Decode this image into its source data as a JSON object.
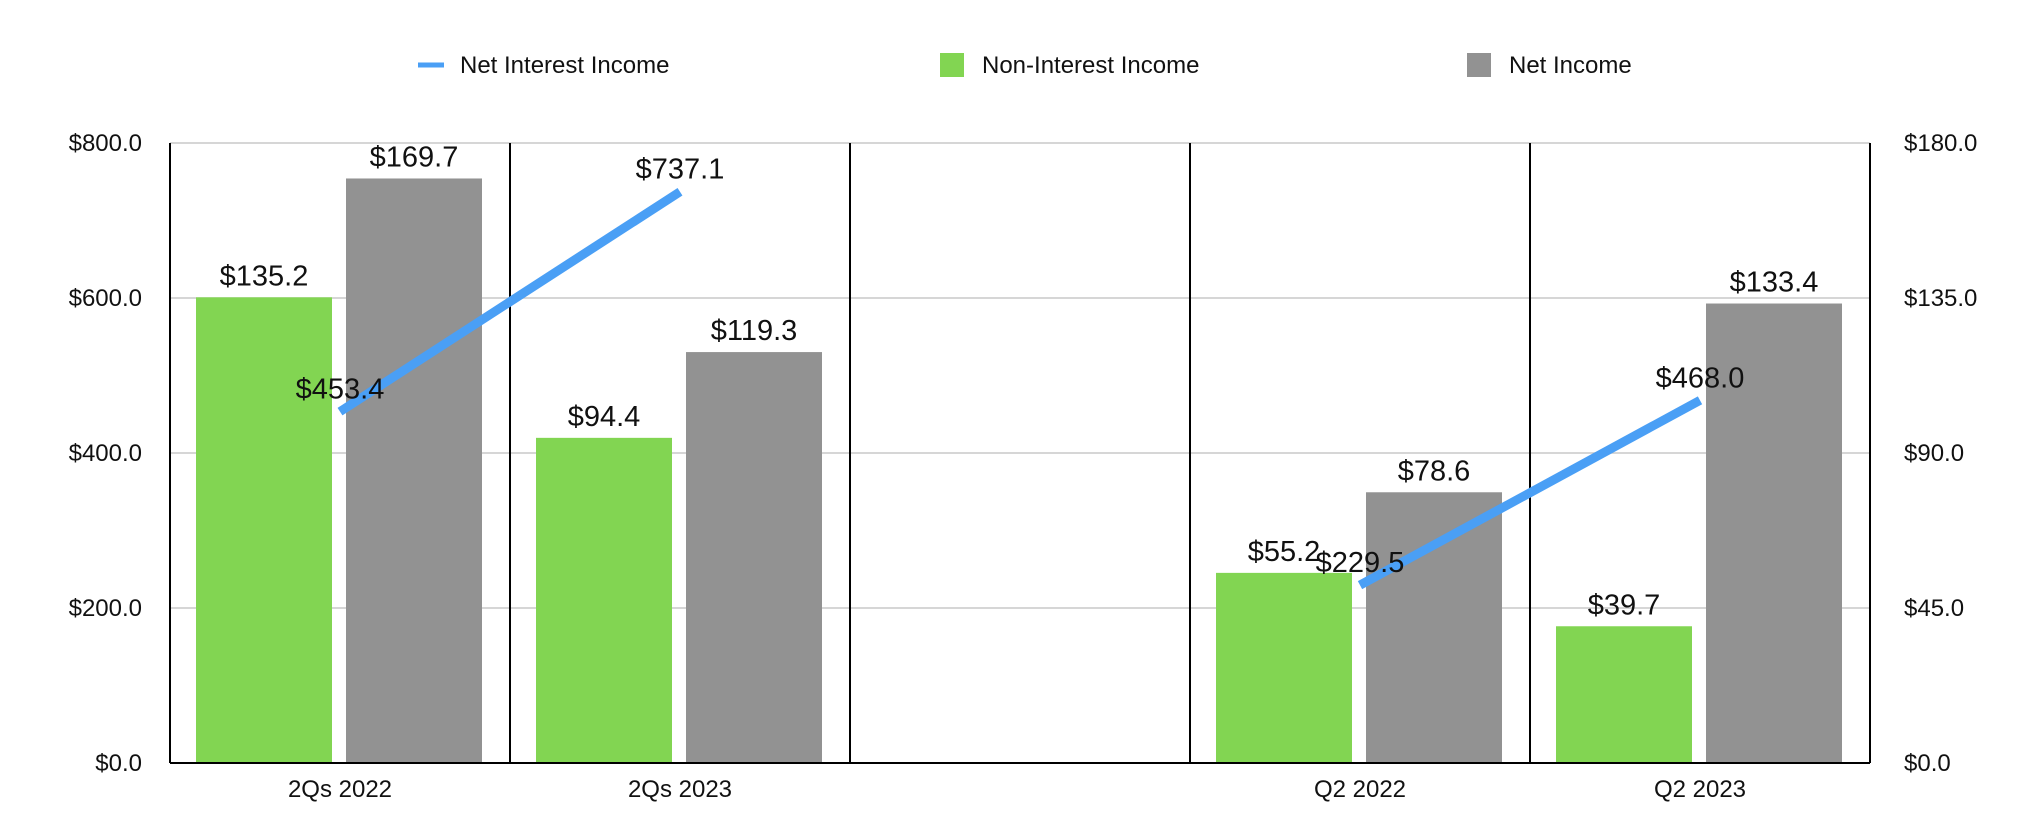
{
  "chart_data": {
    "type": "bar",
    "categories": [
      "2Qs 2022",
      "2Qs 2023",
      "",
      "Q2 2022",
      "Q2 2023"
    ],
    "series": [
      {
        "name": "Net Interest Income",
        "type": "line",
        "axis": "left",
        "color": "#4a9ff5",
        "values": [
          453.4,
          737.1,
          null,
          229.5,
          468.0
        ],
        "labels": [
          "$453.4",
          "$737.1",
          "",
          "$229.5",
          "$468.0"
        ]
      },
      {
        "name": "Non-Interest Income",
        "type": "bar",
        "axis": "right",
        "color": "#82d552",
        "values": [
          135.2,
          94.4,
          null,
          55.2,
          39.7
        ],
        "labels": [
          "$135.2",
          "$94.4",
          "",
          "$55.2",
          "$39.7"
        ]
      },
      {
        "name": "Net Income",
        "type": "bar",
        "axis": "right",
        "color": "#929292",
        "values": [
          169.7,
          119.3,
          null,
          78.6,
          133.4
        ],
        "labels": [
          "$169.7",
          "$119.3",
          "",
          "$78.6",
          "$133.4"
        ]
      }
    ],
    "left_axis": {
      "ylim": [
        0,
        800
      ],
      "ticks": [
        0,
        200,
        400,
        600,
        800
      ],
      "tick_labels": [
        "$0.0",
        "$200.0",
        "$400.0",
        "$600.0",
        "$800.0"
      ]
    },
    "right_axis": {
      "ylim": [
        0,
        180
      ],
      "ticks": [
        0,
        45,
        90,
        135,
        180
      ],
      "tick_labels": [
        "$0.0",
        "$45.0",
        "$90.0",
        "$135.0",
        "$180.0"
      ]
    },
    "legend": {
      "position": "top",
      "items": [
        "Net Interest Income",
        "Non-Interest Income",
        "Net Income"
      ]
    },
    "grid": true,
    "line_segments": [
      [
        0,
        1
      ],
      [
        3,
        4
      ]
    ]
  }
}
